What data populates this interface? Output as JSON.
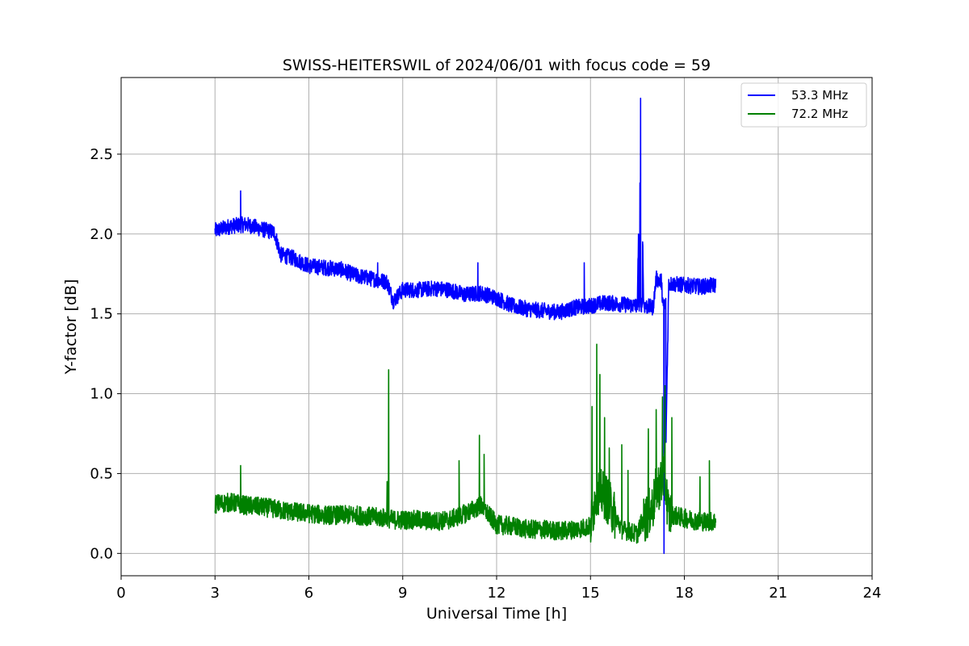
{
  "chart_data": {
    "type": "line",
    "title": "SWISS-HEITERSWIL of 2024/06/01 with focus code = 59",
    "xlabel": "Universal Time [h]",
    "ylabel": "Y-factor [dB]",
    "xlim": [
      0,
      24
    ],
    "ylim": [
      -0.14,
      2.98
    ],
    "xticks": [
      0,
      3,
      6,
      9,
      12,
      15,
      18,
      21,
      24
    ],
    "xtick_labels": [
      "0",
      "3",
      "6",
      "9",
      "12",
      "15",
      "18",
      "21",
      "24"
    ],
    "yticks": [
      0.0,
      0.5,
      1.0,
      1.5,
      2.0,
      2.5
    ],
    "ytick_labels": [
      "0.0",
      "0.5",
      "1.0",
      "1.5",
      "2.0",
      "2.5"
    ],
    "grid": true,
    "legend_position": "top-right",
    "x": [
      3.0,
      3.5,
      4.0,
      4.5,
      4.9,
      5.1,
      5.5,
      6.0,
      6.5,
      7.0,
      7.5,
      8.0,
      8.5,
      8.7,
      9.0,
      9.5,
      10.0,
      10.5,
      11.0,
      11.5,
      12.0,
      12.5,
      13.0,
      13.5,
      14.0,
      14.5,
      15.0,
      15.2,
      15.5,
      16.0,
      16.5,
      16.6,
      16.7,
      17.0,
      17.1,
      17.3,
      17.35,
      17.5,
      18.0,
      18.5,
      19.0
    ],
    "series": [
      {
        "name": "53.3 MHz",
        "color": "#0000ff",
        "values": [
          2.02,
          2.05,
          2.06,
          2.03,
          2.01,
          1.87,
          1.85,
          1.8,
          1.79,
          1.78,
          1.74,
          1.72,
          1.7,
          1.58,
          1.65,
          1.65,
          1.66,
          1.65,
          1.62,
          1.63,
          1.6,
          1.55,
          1.53,
          1.52,
          1.51,
          1.54,
          1.55,
          1.56,
          1.57,
          1.56,
          1.55,
          2.85,
          1.55,
          1.54,
          1.72,
          1.7,
          0.0,
          1.69,
          1.68,
          1.67,
          1.68
        ]
      },
      {
        "name": "72.2 MHz",
        "color": "#008000",
        "values": [
          0.31,
          0.32,
          0.3,
          0.29,
          0.28,
          0.27,
          0.26,
          0.25,
          0.24,
          0.24,
          0.24,
          0.23,
          0.22,
          0.21,
          0.21,
          0.21,
          0.2,
          0.21,
          0.25,
          0.3,
          0.18,
          0.17,
          0.15,
          0.15,
          0.14,
          0.15,
          0.17,
          0.4,
          0.35,
          0.15,
          0.12,
          0.18,
          0.2,
          0.3,
          0.4,
          0.45,
          0.5,
          0.25,
          0.22,
          0.2,
          0.2
        ]
      }
    ],
    "annotations": [
      {
        "series": "72.2 MHz",
        "x": 8.55,
        "y": 1.15
      },
      {
        "series": "72.2 MHz",
        "x": 15.2,
        "y": 1.31
      },
      {
        "series": "72.2 MHz",
        "x": 11.45,
        "y": 0.74
      },
      {
        "series": "72.2 MHz",
        "x": 17.35,
        "y": 1.05
      },
      {
        "series": "53.3 MHz",
        "x": 3.82,
        "y": 2.27
      }
    ]
  }
}
